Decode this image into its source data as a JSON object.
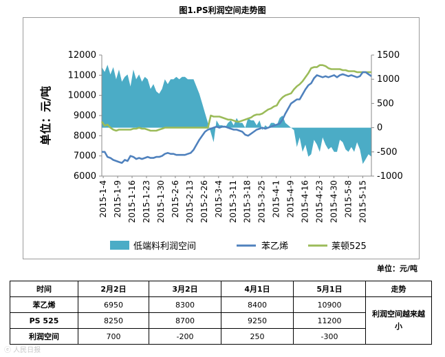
{
  "title": "图1.PS利润空间走势图",
  "unit_note": "单位：元/吨",
  "watermark": "ⓔ 人民日报",
  "colors": {
    "area": "#4bacc6",
    "styrene": "#4f81bd",
    "ps525": "#9bbb59",
    "axis": "#888888"
  },
  "chart_data": {
    "type": "line+area",
    "title": "图1.PS利润空间走势图",
    "ylabel": "单位：元/吨",
    "ylabel_text": "单位：元/吨",
    "y_left": {
      "min": 6000,
      "max": 12000,
      "ticks": [
        6000,
        7000,
        8000,
        9000,
        10000,
        11000,
        12000
      ]
    },
    "y_right": {
      "min": -1000,
      "max": 1500,
      "ticks": [
        -1000,
        -500,
        0,
        500,
        1000,
        1500
      ]
    },
    "x_tick_labels": [
      "2015-1-4",
      "2015-1-9",
      "2015-1-16",
      "2015-1-23",
      "2015-1-30",
      "2015-2-6",
      "2015-2-13",
      "2015-2-26",
      "2015-3-4",
      "2015-3-11",
      "2015-3-18",
      "2015-3-25",
      "2015-4-1",
      "2015-4-9",
      "2015-4-16",
      "2015-4-23",
      "2015-4-30",
      "2015-5-8",
      "2015-5-15"
    ],
    "legend": [
      "低端料利润空间",
      "苯乙烯",
      "莱顿525"
    ],
    "series": [
      {
        "name": "低端料利润空间",
        "axis": "right",
        "type": "area",
        "values": [
          1250,
          1150,
          1300,
          1100,
          1250,
          1000,
          1200,
          950,
          1050,
          1100,
          850,
          1200,
          1000,
          1100,
          950,
          1050,
          1000,
          800,
          900,
          750,
          700,
          800,
          1000,
          900,
          1000,
          1000,
          1050,
          1000,
          1050,
          1050,
          1000,
          1000,
          1000,
          850,
          700,
          500,
          300,
          100,
          -100,
          -300,
          150,
          50,
          50,
          0,
          100,
          150,
          50,
          200,
          100,
          100,
          0,
          200,
          150,
          150,
          50,
          150,
          -50,
          50,
          0,
          100,
          100,
          50,
          200,
          250,
          100,
          50,
          0,
          -50,
          -400,
          -200,
          -500,
          -350,
          -600,
          -550,
          -250,
          -350,
          -500,
          -200,
          -350,
          -450,
          -400,
          -500,
          -500,
          -250,
          -300,
          -450,
          -500,
          -400,
          -500,
          -300,
          -450,
          -750,
          -650,
          -550,
          -600
        ]
      },
      {
        "name": "苯乙烯",
        "axis": "left",
        "type": "line",
        "values": [
          7200,
          7200,
          6950,
          6900,
          6800,
          6750,
          6700,
          6650,
          6800,
          6750,
          7000,
          6950,
          6850,
          6900,
          6850,
          6900,
          6950,
          6900,
          6900,
          6950,
          6950,
          7000,
          7100,
          7150,
          7100,
          7100,
          7050,
          7050,
          7050,
          7050,
          7100,
          7150,
          7300,
          7550,
          7800,
          8000,
          8200,
          8300,
          8350,
          8400,
          8450,
          8400,
          8450,
          8450,
          8400,
          8350,
          8300,
          8300,
          8250,
          8200,
          8050,
          8000,
          8100,
          8200,
          8300,
          8350,
          8400,
          8350,
          8400,
          8450,
          8500,
          8550,
          8600,
          8800,
          9100,
          9350,
          9600,
          9700,
          9800,
          9800,
          10050,
          10300,
          10500,
          10600,
          10850,
          11000,
          10950,
          10900,
          10950,
          10900,
          10950,
          11000,
          10900,
          11000,
          11050,
          11000,
          10950,
          11000,
          10950,
          10900,
          10950,
          11150,
          11150,
          11050,
          10950
        ]
      },
      {
        "name": "莱顿525",
        "axis": "left",
        "type": "line",
        "values": [
          8700,
          8500,
          8550,
          8400,
          8300,
          8250,
          8300,
          8300,
          8300,
          8300,
          8300,
          8350,
          8350,
          8400,
          8350,
          8350,
          8300,
          8250,
          8250,
          8250,
          8300,
          8350,
          8400,
          8400,
          8400,
          8400,
          8400,
          8400,
          8400,
          8400,
          8400,
          8400,
          8400,
          8400,
          8400,
          8400,
          8400,
          8400,
          9000,
          8950,
          8950,
          8950,
          8900,
          8850,
          8800,
          8800,
          8750,
          8700,
          8700,
          8750,
          8800,
          8850,
          8900,
          9000,
          9050,
          9050,
          9100,
          9200,
          9300,
          9350,
          9450,
          9500,
          9750,
          9900,
          10000,
          10050,
          10100,
          10300,
          10450,
          10550,
          10700,
          10900,
          11100,
          11350,
          11400,
          11400,
          11500,
          11500,
          11450,
          11350,
          11300,
          11300,
          11300,
          11300,
          11250,
          11250,
          11200,
          11200,
          11200,
          11150,
          11150,
          11150,
          11150,
          11150,
          11150
        ]
      }
    ]
  },
  "table": {
    "headers": [
      "时间",
      "2月2日",
      "3月2日",
      "4月1日",
      "5月1日",
      "走势"
    ],
    "rows": [
      {
        "label": "苯乙烯",
        "values": [
          "6950",
          "8300",
          "8400",
          "10900"
        ]
      },
      {
        "label": "PS 525",
        "values": [
          "8250",
          "8700",
          "9250",
          "11200"
        ]
      },
      {
        "label": "利润空间",
        "values": [
          "700",
          "-200",
          "250",
          "-300"
        ]
      }
    ],
    "trend_text": "利润空间越来越小"
  }
}
